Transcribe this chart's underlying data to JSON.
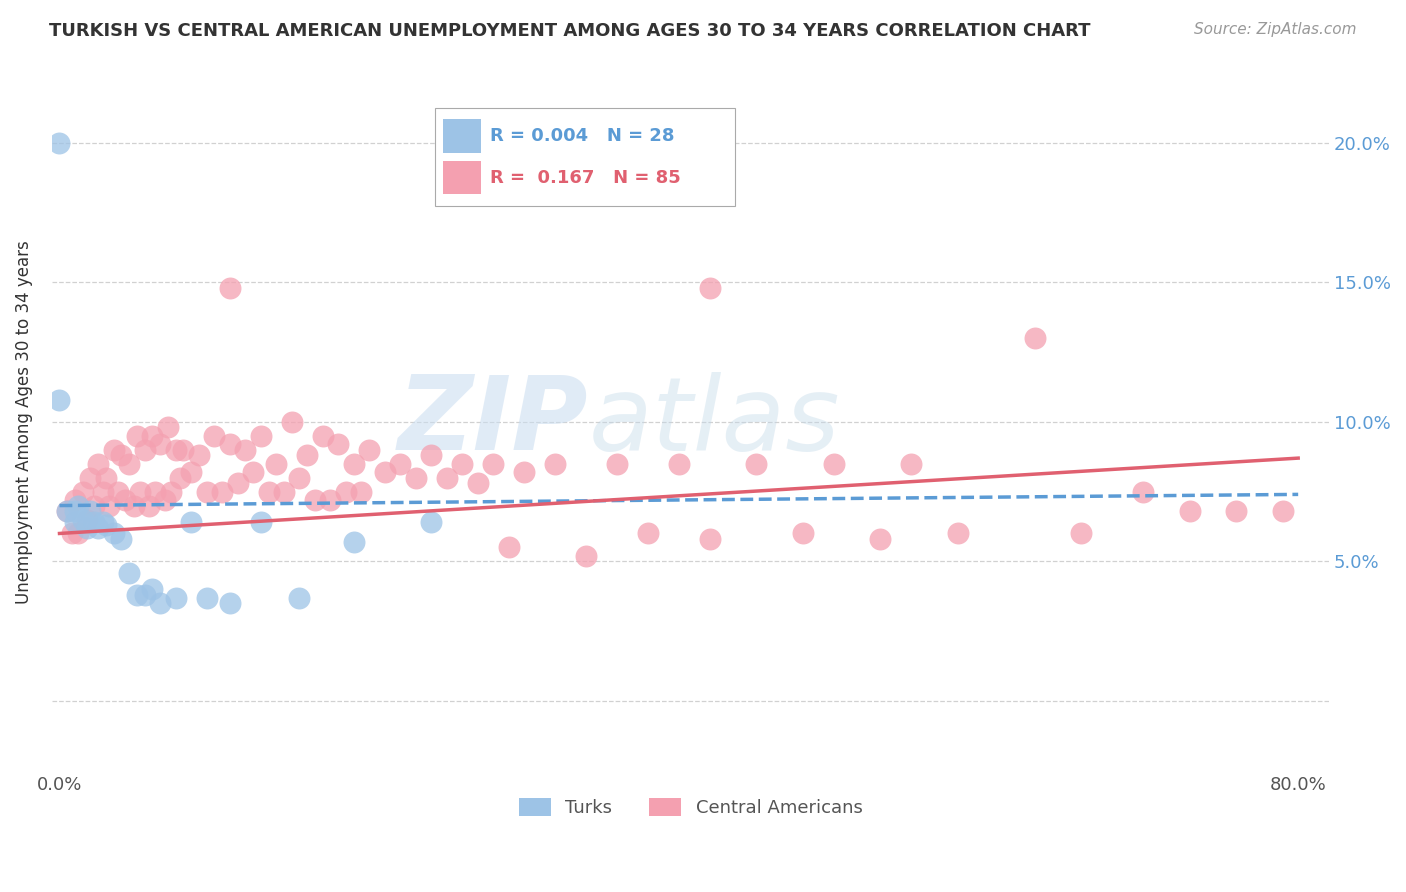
{
  "title": "TURKISH VS CENTRAL AMERICAN UNEMPLOYMENT AMONG AGES 30 TO 34 YEARS CORRELATION CHART",
  "source": "Source: ZipAtlas.com",
  "ylabel": "Unemployment Among Ages 30 to 34 years",
  "xlim": [
    -0.005,
    0.82
  ],
  "ylim": [
    -0.025,
    0.225
  ],
  "xtick_positions": [
    0.0,
    0.1,
    0.2,
    0.3,
    0.4,
    0.5,
    0.6,
    0.7,
    0.8
  ],
  "xticklabels": [
    "0.0%",
    "",
    "",
    "",
    "",
    "",
    "",
    "",
    "80.0%"
  ],
  "ytick_positions": [
    0.0,
    0.05,
    0.1,
    0.15,
    0.2
  ],
  "yticklabels_right": [
    "",
    "5.0%",
    "10.0%",
    "15.0%",
    "20.0%"
  ],
  "turks_R": "0.004",
  "turks_N": "28",
  "central_R": "0.167",
  "central_N": "85",
  "turks_dot_color": "#9DC3E6",
  "central_dot_color": "#F4A0B0",
  "turks_line_color": "#5B9BD5",
  "central_line_color": "#E06070",
  "right_tick_color": "#5B9BD5",
  "watermark_zip_color": "#C8DCF0",
  "watermark_atlas_color": "#C0D8E8",
  "grid_color": "#CCCCCC",
  "title_color": "#333333",
  "source_color": "#999999",
  "label_color": "#555555",
  "turks_line_y0": 0.07,
  "turks_line_y1": 0.074,
  "central_line_y0": 0.06,
  "central_line_y1": 0.087,
  "turks_x": [
    0.0,
    0.0,
    0.005,
    0.01,
    0.01,
    0.012,
    0.015,
    0.018,
    0.02,
    0.022,
    0.025,
    0.028,
    0.03,
    0.035,
    0.04,
    0.045,
    0.05,
    0.055,
    0.06,
    0.065,
    0.075,
    0.085,
    0.095,
    0.11,
    0.13,
    0.155,
    0.19,
    0.24
  ],
  "turks_y": [
    0.2,
    0.108,
    0.068,
    0.068,
    0.064,
    0.07,
    0.065,
    0.062,
    0.068,
    0.064,
    0.062,
    0.064,
    0.063,
    0.06,
    0.058,
    0.046,
    0.038,
    0.038,
    0.04,
    0.035,
    0.037,
    0.064,
    0.037,
    0.035,
    0.064,
    0.037,
    0.057,
    0.064
  ],
  "central_x": [
    0.005,
    0.008,
    0.01,
    0.012,
    0.015,
    0.018,
    0.02,
    0.022,
    0.025,
    0.028,
    0.03,
    0.032,
    0.035,
    0.038,
    0.04,
    0.042,
    0.045,
    0.048,
    0.05,
    0.052,
    0.055,
    0.058,
    0.06,
    0.062,
    0.065,
    0.068,
    0.07,
    0.072,
    0.075,
    0.078,
    0.08,
    0.085,
    0.09,
    0.095,
    0.1,
    0.105,
    0.11,
    0.115,
    0.12,
    0.125,
    0.13,
    0.135,
    0.14,
    0.145,
    0.15,
    0.155,
    0.16,
    0.165,
    0.17,
    0.175,
    0.18,
    0.185,
    0.19,
    0.195,
    0.2,
    0.21,
    0.22,
    0.23,
    0.24,
    0.25,
    0.26,
    0.27,
    0.28,
    0.29,
    0.3,
    0.32,
    0.34,
    0.36,
    0.38,
    0.4,
    0.42,
    0.45,
    0.48,
    0.5,
    0.53,
    0.55,
    0.58,
    0.63,
    0.66,
    0.7,
    0.73,
    0.76,
    0.79,
    0.42,
    0.11
  ],
  "central_y": [
    0.068,
    0.06,
    0.072,
    0.06,
    0.075,
    0.065,
    0.08,
    0.07,
    0.085,
    0.075,
    0.08,
    0.07,
    0.09,
    0.075,
    0.088,
    0.072,
    0.085,
    0.07,
    0.095,
    0.075,
    0.09,
    0.07,
    0.095,
    0.075,
    0.092,
    0.072,
    0.098,
    0.075,
    0.09,
    0.08,
    0.09,
    0.082,
    0.088,
    0.075,
    0.095,
    0.075,
    0.092,
    0.078,
    0.09,
    0.082,
    0.095,
    0.075,
    0.085,
    0.075,
    0.1,
    0.08,
    0.088,
    0.072,
    0.095,
    0.072,
    0.092,
    0.075,
    0.085,
    0.075,
    0.09,
    0.082,
    0.085,
    0.08,
    0.088,
    0.08,
    0.085,
    0.078,
    0.085,
    0.055,
    0.082,
    0.085,
    0.052,
    0.085,
    0.06,
    0.085,
    0.058,
    0.085,
    0.06,
    0.085,
    0.058,
    0.085,
    0.06,
    0.13,
    0.06,
    0.075,
    0.068,
    0.068,
    0.068,
    0.148,
    0.148
  ]
}
